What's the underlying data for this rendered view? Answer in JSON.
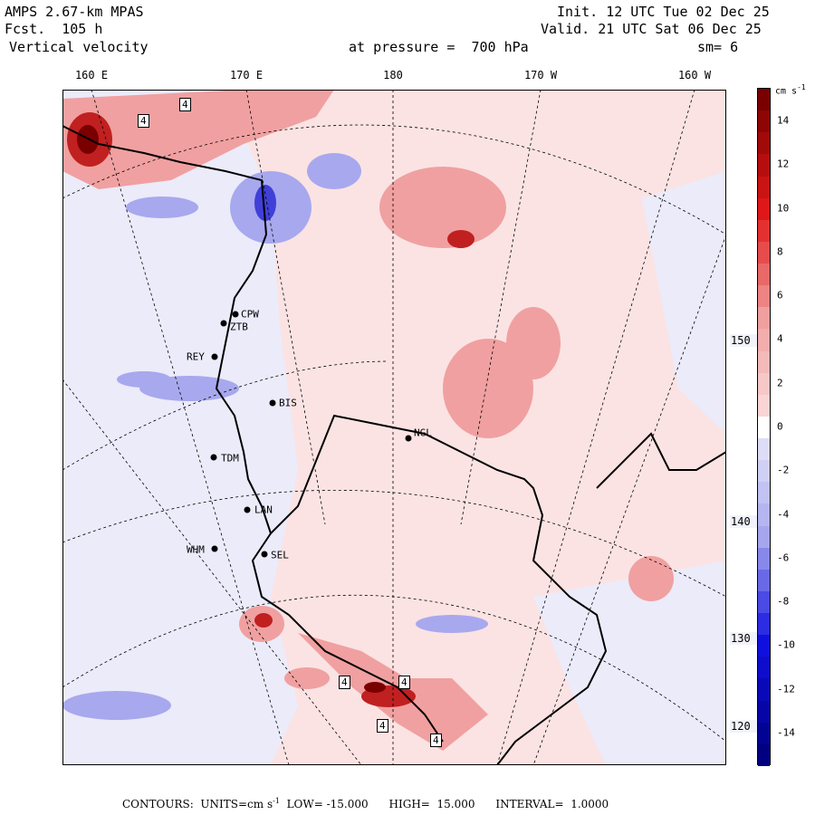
{
  "header": {
    "model": "AMPS 2.67-km MPAS",
    "forecast_label": "Fcst.",
    "forecast_value": "105 h",
    "field": "Vertical velocity",
    "init_label": "Init.",
    "init_value": "12 UTC Tue 02 Dec 25",
    "valid_label": "Valid.",
    "valid_value": "21 UTC Sat 06 Dec 25",
    "pressure_label": "at pressure =",
    "pressure_value": "700 hPa",
    "smoothing": "sm= 6"
  },
  "longitude_labels": [
    "160 E",
    "170 E",
    "180",
    "170 W",
    "160 W"
  ],
  "right_labels": [
    "150 W",
    "140 W",
    "130 W",
    "120 W"
  ],
  "stations": [
    {
      "id": "CPW"
    },
    {
      "id": "ZTB"
    },
    {
      "id": "REY"
    },
    {
      "id": "BIS"
    },
    {
      "id": "NGL"
    },
    {
      "id": "TDM"
    },
    {
      "id": "LAN"
    },
    {
      "id": "WHM"
    },
    {
      "id": "SEL"
    }
  ],
  "map_contour_labels": [
    "4",
    "4",
    "4",
    "4",
    "4",
    "4"
  ],
  "colorbar": {
    "units_label": "cm s",
    "units_exp": "-1",
    "tick_labels": [
      "14",
      "12",
      "10",
      "8",
      "6",
      "4",
      "2",
      "0",
      "-2",
      "-4",
      "-6",
      "-8",
      "-10",
      "-12",
      "-14"
    ],
    "colors": {
      "pos_dark": "#7a0000",
      "pos_mid": "#e01818",
      "pos_light": "#f0a0a0",
      "near_zero_pos": "#fbe3e3",
      "near_zero_neg": "#ebebfa",
      "neg_light": "#a8a8ee",
      "neg_mid": "#1010e0",
      "neg_dark": "#000080"
    }
  },
  "footer": {
    "contours_label": "CONTOURS:",
    "units_label": "UNITS=cm s",
    "units_exp": "-1",
    "low_label": "LOW=",
    "low_value": "-15.000",
    "high_label": "HIGH=",
    "high_value": "15.000",
    "interval_label": "INTERVAL=",
    "interval_value": "1.0000"
  }
}
